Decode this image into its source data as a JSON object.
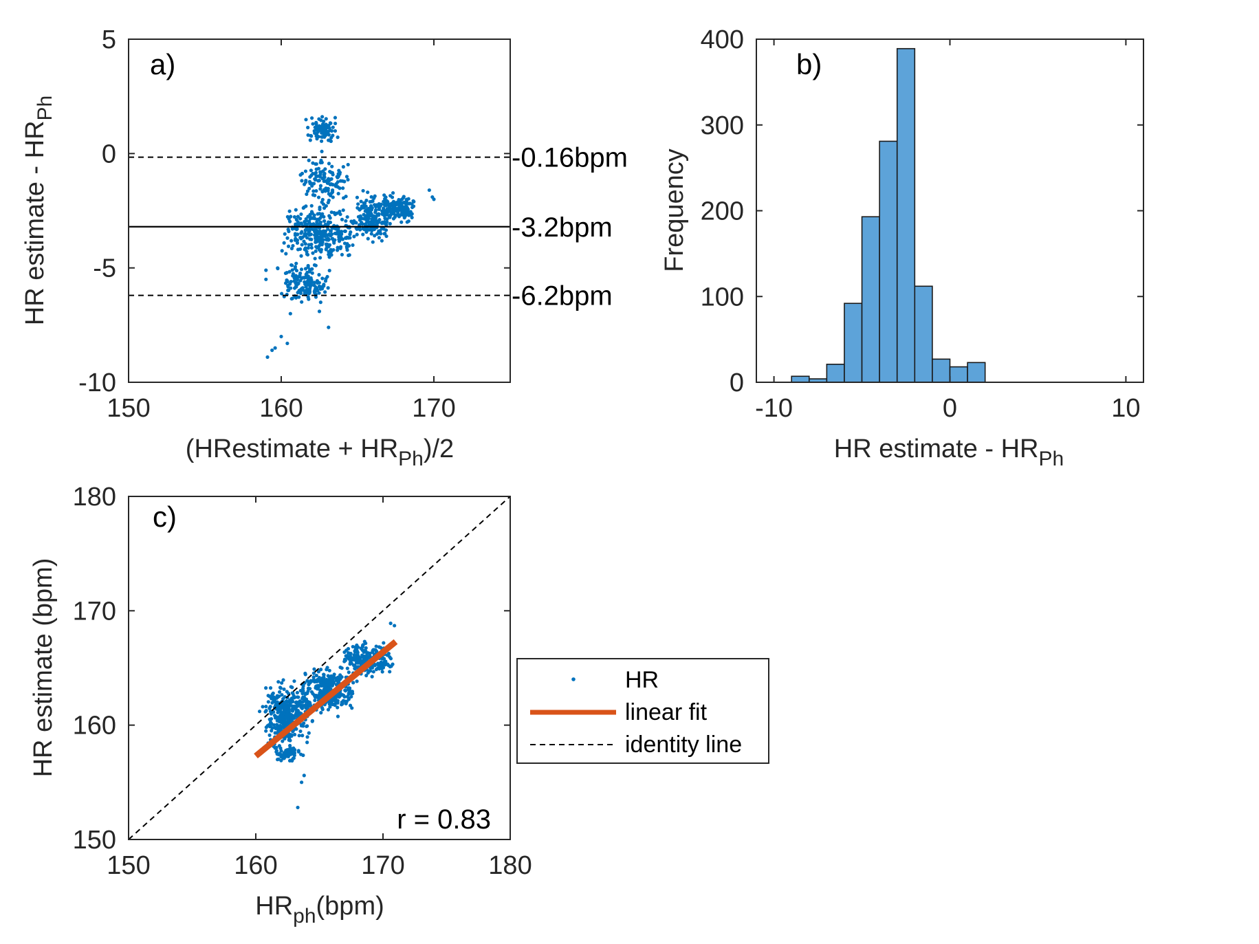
{
  "chart_data": [
    {
      "panel_label": "a)",
      "type": "scatter",
      "xlabel": "(HRestimate  + HR",
      "xlabel_sub": "Ph",
      "xlabel_tail": ")/2",
      "ylabel": "HR estimate - HR",
      "ylabel_sub": "Ph",
      "xlim": [
        150,
        175
      ],
      "ylim": [
        -10,
        5
      ],
      "xticks": [
        150,
        160,
        170
      ],
      "yticks": [
        -10,
        -5,
        0,
        5
      ],
      "marker_color": "#0072BD",
      "hlines": [
        {
          "y": -0.16,
          "style": "dashed",
          "label": "-0.16bpm"
        },
        {
          "y": -3.2,
          "style": "solid",
          "label": "-3.2bpm"
        },
        {
          "y": -6.2,
          "style": "dashed",
          "label": "-6.2bpm"
        }
      ],
      "clusters": [
        {
          "x": [
            161.5,
            163.8
          ],
          "y": [
            0.3,
            1.8
          ],
          "n": 90
        },
        {
          "x": [
            161.0,
            164.5
          ],
          "y": [
            -2.5,
            0.2
          ],
          "n": 120
        },
        {
          "x": [
            160.0,
            165.0
          ],
          "y": [
            -5.0,
            -2.0
          ],
          "n": 330
        },
        {
          "x": [
            159.5,
            163.5
          ],
          "y": [
            -6.8,
            -4.5
          ],
          "n": 150
        },
        {
          "x": [
            164.5,
            167.5
          ],
          "y": [
            -4.0,
            -1.5
          ],
          "n": 200
        },
        {
          "x": [
            166.5,
            168.8
          ],
          "y": [
            -3.2,
            -1.5
          ],
          "n": 140
        }
      ],
      "outliers": [
        {
          "x": 159.1,
          "y": -8.9
        },
        {
          "x": 159.4,
          "y": -8.6
        },
        {
          "x": 159.6,
          "y": -8.5
        },
        {
          "x": 160.0,
          "y": -8.0
        },
        {
          "x": 160.4,
          "y": -8.3
        },
        {
          "x": 159.0,
          "y": -5.5
        },
        {
          "x": 159.0,
          "y": -5.1
        },
        {
          "x": 163.1,
          "y": -7.6
        },
        {
          "x": 162.5,
          "y": -6.9
        },
        {
          "x": 169.7,
          "y": -1.6
        },
        {
          "x": 169.9,
          "y": -1.9
        },
        {
          "x": 170.0,
          "y": -2.0
        },
        {
          "x": 160.6,
          "y": -7.0
        }
      ]
    },
    {
      "panel_label": "b)",
      "type": "bar",
      "ylabel": "Frequency",
      "xlabel": "HR estimate  - HR",
      "xlabel_sub": "Ph",
      "xlim": [
        -11,
        11
      ],
      "ylim": [
        0,
        400
      ],
      "xticks": [
        -10,
        0,
        10
      ],
      "yticks": [
        0,
        100,
        200,
        300,
        400
      ],
      "bar_color": "#5DA3D9",
      "bin_edges": [
        -9,
        -8,
        -7,
        -6,
        -5,
        -4,
        -3,
        -2,
        -1,
        0,
        1,
        2
      ],
      "values": [
        7,
        4,
        21,
        92,
        193,
        281,
        389,
        112,
        27,
        18,
        23
      ]
    },
    {
      "panel_label": "c)",
      "type": "scatter",
      "xlabel": "HR",
      "xlabel_sub": "ph",
      "xlabel_tail": "(bpm)",
      "ylabel": "HR estimate (bpm)",
      "xlim": [
        150,
        180
      ],
      "ylim": [
        150,
        180
      ],
      "xticks": [
        150,
        160,
        170,
        180
      ],
      "yticks": [
        150,
        160,
        170,
        180
      ],
      "marker_color": "#0072BD",
      "fit_color": "#D95319",
      "linear_fit": {
        "x": [
          160,
          171
        ],
        "y": [
          157.3,
          167.3
        ]
      },
      "identity_line": {
        "x": [
          150,
          180
        ],
        "y": [
          150,
          180
        ]
      },
      "annotation": "r = 0.83",
      "clusters": [
        {
          "x": [
            160.5,
            164.5
          ],
          "y": [
            157.5,
            164.5
          ],
          "n": 380
        },
        {
          "x": [
            163.5,
            168.0
          ],
          "y": [
            160.5,
            165.5
          ],
          "n": 300
        },
        {
          "x": [
            166.5,
            171.0
          ],
          "y": [
            164.0,
            167.5
          ],
          "n": 230
        },
        {
          "x": [
            161.0,
            164.0
          ],
          "y": [
            156.5,
            158.5
          ],
          "n": 60
        }
      ],
      "outliers": [
        {
          "x": 163.3,
          "y": 152.8
        },
        {
          "x": 163.6,
          "y": 155.0
        },
        {
          "x": 163.8,
          "y": 155.6
        },
        {
          "x": 170.6,
          "y": 168.9
        },
        {
          "x": 170.9,
          "y": 168.7
        },
        {
          "x": 160.3,
          "y": 161.2
        }
      ],
      "legend": {
        "placement": "outside-right",
        "entries": [
          {
            "label": "HR",
            "kind": "marker"
          },
          {
            "label": "linear fit",
            "kind": "line"
          },
          {
            "label": "identity line",
            "kind": "dashed"
          }
        ]
      }
    }
  ]
}
